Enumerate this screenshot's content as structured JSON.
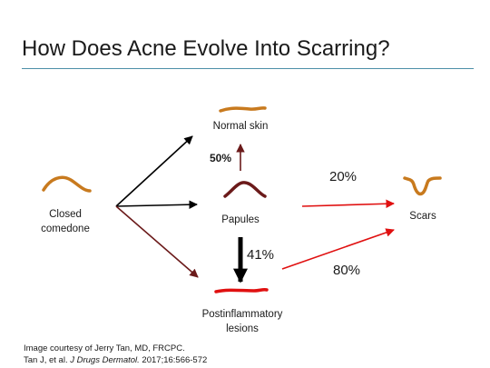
{
  "title": "How Does Acne Evolve Into Scarring?",
  "nodes": {
    "normal_skin": "Normal skin",
    "closed_comedone_line1": "Closed",
    "closed_comedone_line2": "comedone",
    "papules": "Papules",
    "scars": "Scars",
    "postinflammatory_line1": "Postinflammatory",
    "postinflammatory_line2": "lesions"
  },
  "percentages": {
    "papules_to_normal": "50%",
    "papules_to_scars": "20%",
    "papules_to_postinflammatory": "41%",
    "postinflammatory_to_scars": "80%"
  },
  "credit": {
    "line1": "Image courtesy of Jerry Tan, MD, FRCPC.",
    "line2_prefix": "Tan J, et al. ",
    "line2_journal": "J Drugs Dermatol.",
    "line2_suffix": " 2017;16:566-572"
  },
  "colors": {
    "rule": "#4d8fa8",
    "comedone_curve": "#c87a1e",
    "papule_curve": "#6b1a1a",
    "lesion_curve": "#e01010",
    "scar_curve": "#c87a1e",
    "arrow_black": "#000000",
    "arrow_maroon": "#6b1a1a",
    "arrow_red": "#e01010"
  }
}
